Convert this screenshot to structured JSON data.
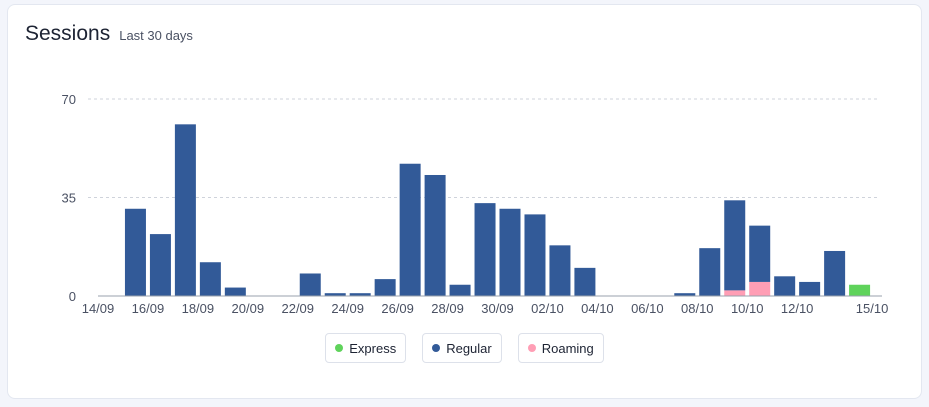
{
  "header": {
    "title": "Sessions",
    "subtitle": "Last 30 days"
  },
  "chart_data": {
    "type": "bar",
    "stacked": true,
    "categories": [
      "14/09",
      "15/09",
      "16/09",
      "17/09",
      "18/09",
      "19/09",
      "20/09",
      "21/09",
      "22/09",
      "23/09",
      "24/09",
      "25/09",
      "26/09",
      "27/09",
      "28/09",
      "29/09",
      "30/09",
      "01/10",
      "02/10",
      "03/10",
      "04/10",
      "05/10",
      "06/10",
      "07/10",
      "08/10",
      "09/10",
      "10/10",
      "11/10",
      "12/10",
      "13/10",
      "14/10",
      "15/10"
    ],
    "x_tick_labels": [
      "14/09",
      "16/09",
      "18/09",
      "20/09",
      "22/09",
      "24/09",
      "26/09",
      "28/09",
      "30/09",
      "02/10",
      "04/10",
      "06/10",
      "08/10",
      "10/10",
      "12/10",
      "15/10"
    ],
    "series": [
      {
        "name": "Express",
        "color": "#5fd35b",
        "values": [
          0,
          0,
          0,
          0,
          0,
          0,
          0,
          0,
          0,
          0,
          0,
          0,
          0,
          0,
          0,
          0,
          0,
          0,
          0,
          0,
          0,
          0,
          0,
          0,
          0,
          0,
          0,
          0,
          0,
          0,
          4,
          0
        ]
      },
      {
        "name": "Regular",
        "color": "#325a98",
        "values": [
          0,
          31,
          22,
          61,
          12,
          3,
          0,
          0,
          8,
          1,
          1,
          6,
          47,
          43,
          4,
          33,
          31,
          29,
          18,
          10,
          0,
          0,
          0,
          1,
          17,
          32,
          20,
          7,
          5,
          16,
          0,
          0
        ]
      },
      {
        "name": "Roaming",
        "color": "#ff9eb5",
        "values": [
          0,
          0,
          0,
          0,
          0,
          0,
          0,
          0,
          0,
          0,
          0,
          0,
          0,
          0,
          0,
          0,
          0,
          0,
          0,
          0,
          0,
          0,
          0,
          0,
          0,
          2,
          5,
          0,
          0,
          0,
          0,
          0
        ]
      }
    ],
    "y_ticks": [
      0,
      35,
      70
    ],
    "ylim": [
      0,
      70
    ],
    "grid": true,
    "legend_position": "bottom"
  }
}
